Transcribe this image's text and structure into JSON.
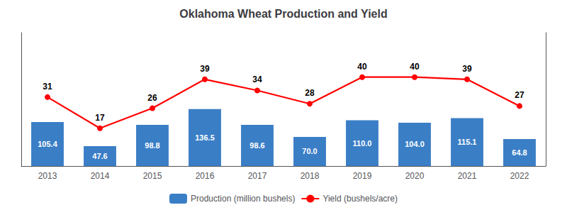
{
  "chart_data": {
    "type": "bar",
    "title": "Oklahoma Wheat Production and Yield",
    "categories": [
      "2013",
      "2014",
      "2015",
      "2016",
      "2017",
      "2018",
      "2019",
      "2020",
      "2021",
      "2022"
    ],
    "series": [
      {
        "name": "Production (million bushels)",
        "type": "bar",
        "color": "#3A7EC6",
        "values": [
          105.4,
          47.6,
          98.8,
          136.5,
          98.6,
          70.0,
          110.0,
          104.0,
          115.1,
          64.8
        ],
        "value_labels": [
          "105.4",
          "47.6",
          "98.8",
          "136.5",
          "98.6",
          "70.0",
          "110.0",
          "104.0",
          "115.1",
          "64.8"
        ]
      },
      {
        "name": "Yield (bushels/acre)",
        "type": "line",
        "color": "#FF0000",
        "marker": "circle",
        "axis": "y2",
        "values": [
          31,
          17,
          26,
          39,
          34,
          28,
          40,
          40,
          39,
          27
        ]
      }
    ],
    "ylim": [
      0,
      320
    ],
    "y2lim": [
      0,
      60
    ],
    "data_labels": true,
    "tick_labels": "x",
    "grid": false,
    "legend": "bottom"
  }
}
